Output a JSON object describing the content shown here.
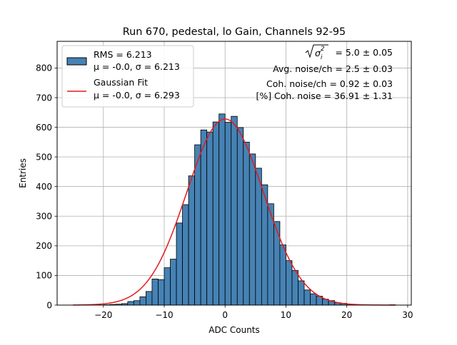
{
  "chart_data": {
    "type": "bar",
    "title": "Run 670, pedestal, lo Gain, Channels 92-95",
    "xlabel": "ADC Counts",
    "ylabel": "Entries",
    "xlim": [
      -27.6,
      30.6
    ],
    "ylim": [
      0,
      890
    ],
    "xticks": [
      -20,
      -10,
      0,
      10,
      20,
      30
    ],
    "yticks": [
      0,
      100,
      200,
      300,
      400,
      500,
      600,
      700,
      800
    ],
    "grid": true,
    "legend_position": "top-left",
    "bin_width": 1,
    "histogram": {
      "name": "RMS = 6.213\nμ = -0.0, σ = 6.213",
      "bin_lefts": [
        -25,
        -24,
        -23,
        -22,
        -21,
        -20,
        -19,
        -18,
        -17,
        -16,
        -15,
        -14,
        -13,
        -12,
        -11,
        -10,
        -9,
        -8,
        -7,
        -6,
        -5,
        -4,
        -3,
        -2,
        -1,
        0,
        1,
        2,
        3,
        4,
        5,
        6,
        7,
        8,
        9,
        10,
        11,
        12,
        13,
        14,
        15,
        16,
        17,
        18,
        19,
        20,
        21,
        22,
        23,
        24,
        25,
        26,
        27
      ],
      "counts": [
        0,
        0,
        0,
        0,
        0,
        1,
        2,
        3,
        5,
        12,
        15,
        28,
        46,
        88,
        86,
        126,
        155,
        277,
        339,
        436,
        541,
        591,
        584,
        618,
        645,
        617,
        637,
        599,
        550,
        510,
        462,
        406,
        342,
        282,
        203,
        150,
        117,
        82,
        51,
        38,
        30,
        20,
        15,
        8,
        6,
        3,
        1,
        1,
        0,
        0,
        0,
        0,
        1
      ],
      "fill_color": "#4682b4",
      "edge_color": "#000000"
    },
    "fit": {
      "name": "Gaussian Fit\nμ = -0.0, σ = 6.293",
      "function": "gaussian",
      "amplitude": 628,
      "mu": 0.0,
      "sigma": 6.293,
      "x_range": [
        -25,
        28
      ],
      "color": "#e41a1c"
    },
    "annotations": [
      {
        "id": "sigma",
        "label": "= 5.0 ± 0.05"
      },
      {
        "id": "avg",
        "label": "Avg. noise/ch = 2.5 ± 0.03"
      },
      {
        "id": "coh",
        "label": "Coh. noise/ch = 0.92 ± 0.03"
      },
      {
        "id": "pct",
        "label": "[%] Coh. noise = 36.91 ± 1.31"
      }
    ],
    "legend": [
      {
        "type": "patch",
        "lines": [
          "RMS = 6.213",
          "μ = -0.0, σ = 6.213"
        ]
      },
      {
        "type": "line",
        "lines": [
          "Gaussian Fit",
          "μ = -0.0, σ = 6.293"
        ]
      }
    ]
  }
}
